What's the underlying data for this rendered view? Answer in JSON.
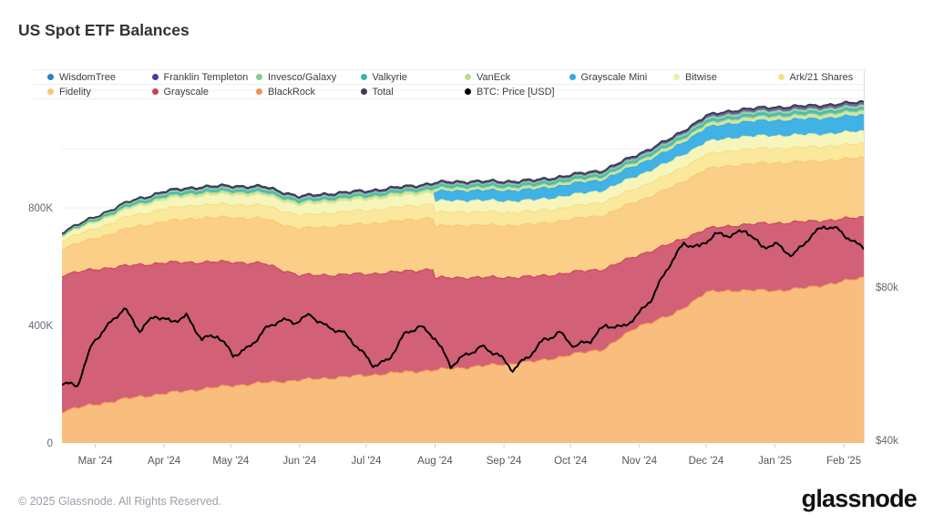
{
  "title": "US Spot ETF Balances",
  "footer": {
    "copyright": "© 2025 Glassnode. All Rights Reserved.",
    "brand": "glassnode"
  },
  "legend": {
    "rows": [
      [
        {
          "label": "WisdomTree",
          "slug": "wisdomtree",
          "color": "#2f7cc4"
        },
        {
          "label": "Franklin Templeton",
          "slug": "franklin-templeton",
          "color": "#4b3f94"
        },
        {
          "label": "Invesco/Galaxy",
          "slug": "invesco-galaxy",
          "color": "#85ca94"
        },
        {
          "label": "Valkyrie",
          "slug": "valkyrie",
          "color": "#3eb3ab"
        },
        {
          "label": "VanEck",
          "slug": "vaneck",
          "color": "#bedc84"
        },
        {
          "label": "Grayscale Mini",
          "slug": "grayscale-mini",
          "color": "#33abe2"
        },
        {
          "label": "Bitwise",
          "slug": "bitwise",
          "color": "#ecefa0"
        },
        {
          "label": "Ark/21 Shares",
          "slug": "ark-21-shares",
          "color": "#f7dd82"
        }
      ],
      [
        {
          "label": "Fidelity",
          "slug": "fidelity",
          "color": "#f9c572"
        },
        {
          "label": "Grayscale",
          "slug": "grayscale",
          "color": "#cb3f57"
        },
        {
          "label": "BlackRock",
          "slug": "blackrock",
          "color": "#f0924e"
        },
        {
          "label": "Total",
          "slug": "total",
          "color": "#3c3d55"
        },
        {
          "label": "BTC: Price [USD]",
          "slug": "btc-price-usd",
          "color": "#000000"
        }
      ]
    ]
  },
  "chart_data": {
    "type": "area",
    "stacked": true,
    "title": "US Spot ETF Balances",
    "x_range": [
      "Feb 15 2024",
      "Feb 10 2025"
    ],
    "x_unit": "days since 2024-02-15",
    "x_days": [
      0,
      15,
      30,
      46,
      61,
      76,
      91,
      107,
      122,
      137,
      152,
      167,
      168,
      183,
      199,
      214,
      229,
      244,
      260,
      275,
      290,
      305,
      321,
      336,
      352,
      361
    ],
    "x_axis": {
      "ticks": [
        {
          "label": "Mar '24",
          "day": 15
        },
        {
          "label": "Apr '24",
          "day": 46
        },
        {
          "label": "May '24",
          "day": 76
        },
        {
          "label": "Jun '24",
          "day": 107
        },
        {
          "label": "Jul '24",
          "day": 137
        },
        {
          "label": "Aug '24",
          "day": 168
        },
        {
          "label": "Sep '24",
          "day": 199
        },
        {
          "label": "Oct '24",
          "day": 229
        },
        {
          "label": "Nov '24",
          "day": 260
        },
        {
          "label": "Dec '24",
          "day": 290
        },
        {
          "label": "Jan '25",
          "day": 321
        },
        {
          "label": "Feb '25",
          "day": 352
        }
      ]
    },
    "y_left": {
      "title": "ETF balance [BTC]",
      "scale": "linear",
      "gridlines_kbtc": [
        200,
        400,
        600,
        800,
        1000,
        1200
      ],
      "labels": [
        {
          "text": "0",
          "value": 0
        },
        {
          "text": "400K",
          "value": 400000
        },
        {
          "text": "800K",
          "value": 800000
        }
      ]
    },
    "y_right": {
      "title": "BTC: Price [USD]",
      "scale": "log",
      "labels": [
        {
          "text": "$40k",
          "value": 40000
        },
        {
          "text": "$80k",
          "value": 80000
        }
      ]
    },
    "series": [
      {
        "name": "BlackRock",
        "slug": "blackrock",
        "color": "#f0924e",
        "fill": "#f9bd7e",
        "values_kbtc": [
          109,
          131,
          152,
          168,
          182,
          195,
          205,
          214,
          222,
          230,
          240,
          248,
          248,
          258,
          268,
          278,
          300,
          320,
          400,
          435,
          513,
          520,
          518,
          528,
          550,
          563
        ]
      },
      {
        "name": "Grayscale",
        "slug": "grayscale",
        "color": "#cb3f57",
        "fill": "#d26077",
        "values_kbtc": [
          463,
          460,
          451,
          445,
          433,
          421,
          405,
          356,
          350,
          345,
          342,
          344,
          313,
          305,
          295,
          288,
          280,
          272,
          240,
          245,
          215,
          222,
          230,
          225,
          212,
          205
        ]
      },
      {
        "name": "Fidelity",
        "slug": "fidelity",
        "color": "#f9c572",
        "fill": "#fbcf87",
        "values_kbtc": [
          90,
          105,
          127,
          140,
          150,
          151,
          153,
          158,
          165,
          170,
          173,
          175,
          175,
          178,
          176,
          178,
          180,
          183,
          185,
          190,
          203,
          205,
          205,
          204,
          203,
          203
        ]
      },
      {
        "name": "Ark/21 Shares",
        "slug": "ark-21-shares",
        "color": "#f7dd82",
        "fill": "#fae89c",
        "values_kbtc": [
          28,
          33,
          40,
          44,
          45,
          45,
          45,
          46,
          47,
          46,
          47,
          47,
          47,
          46,
          45,
          44,
          44,
          45,
          46,
          48,
          50,
          51,
          50,
          49,
          48,
          47
        ]
      },
      {
        "name": "Bitwise",
        "slug": "bitwise",
        "color": "#ecefa0",
        "fill": "#f6f6bc",
        "values_kbtc": [
          16,
          20,
          25,
          30,
          31,
          32,
          33,
          34,
          35,
          36,
          37,
          38,
          38,
          38,
          38,
          38,
          38,
          39,
          40,
          42,
          42,
          43,
          42,
          42,
          42,
          42
        ]
      },
      {
        "name": "Grayscale Mini",
        "slug": "grayscale-mini",
        "color": "#33abe2",
        "fill": "#41b2e5",
        "values_kbtc": [
          0,
          0,
          0,
          0,
          0,
          0,
          0,
          0,
          0,
          0,
          0,
          0,
          33,
          34,
          36,
          37,
          38,
          37,
          38,
          40,
          48,
          50,
          52,
          53,
          54,
          55
        ]
      },
      {
        "name": "VanEck",
        "slug": "vaneck",
        "color": "#bedc84",
        "fill": "#d0e5a0",
        "values_kbtc": [
          3,
          5,
          7,
          8,
          8.5,
          9,
          9,
          9,
          9,
          9,
          9.5,
          10,
          10,
          10,
          10,
          10,
          10,
          10,
          11,
          12,
          13,
          13.5,
          14,
          14,
          14,
          14
        ]
      },
      {
        "name": "Valkyrie",
        "slug": "valkyrie",
        "color": "#3eb3ab",
        "fill": "#56beb6",
        "values_kbtc": [
          3,
          6,
          7.5,
          8,
          8.3,
          8.5,
          8.5,
          8.5,
          8.5,
          8.5,
          8.5,
          8.5,
          8.5,
          8.5,
          8.5,
          8.5,
          8.5,
          8.7,
          9,
          9.5,
          10,
          10,
          10,
          10,
          10,
          10
        ]
      },
      {
        "name": "Invesco/Galaxy",
        "slug": "invesco-galaxy",
        "color": "#85ca94",
        "fill": "#9ad5a6",
        "values_kbtc": [
          4,
          5,
          5.5,
          6,
          6,
          6,
          5.8,
          5.6,
          5.4,
          5.2,
          5,
          5,
          5,
          5,
          5,
          5,
          5,
          5.5,
          6,
          7,
          8,
          8.5,
          9,
          9,
          9,
          9
        ]
      },
      {
        "name": "Franklin Templeton",
        "slug": "franklin-templeton",
        "color": "#4b3f94",
        "fill": "#7063aa",
        "values_kbtc": [
          2,
          4,
          5,
          6,
          6.3,
          6.5,
          6.5,
          6.5,
          6.8,
          7,
          7,
          7,
          7,
          7,
          7,
          7,
          7,
          7.5,
          8,
          9,
          10,
          10.5,
          11,
          11,
          11,
          11
        ]
      },
      {
        "name": "WisdomTree",
        "slug": "wisdomtree",
        "color": "#2f7cc4",
        "fill": "#4287c9",
        "values_kbtc": [
          0.2,
          0.4,
          0.6,
          0.8,
          0.9,
          0.9,
          0.9,
          0.9,
          0.9,
          0.9,
          0.9,
          0.9,
          0.9,
          0.9,
          0.9,
          0.9,
          0.9,
          1,
          1,
          1.1,
          1.2,
          1.2,
          1.3,
          1.3,
          1.3,
          1.3
        ]
      }
    ],
    "total": {
      "name": "Total",
      "color": "#3c3d55"
    },
    "btc_price": {
      "name": "BTC: Price [USD]",
      "color": "#000000",
      "days": [
        0,
        7,
        14,
        21,
        28,
        35,
        42,
        49,
        56,
        63,
        70,
        77,
        84,
        91,
        98,
        105,
        112,
        119,
        126,
        133,
        140,
        147,
        154,
        161,
        168,
        175,
        182,
        189,
        196,
        203,
        210,
        217,
        224,
        231,
        238,
        245,
        252,
        259,
        266,
        273,
        280,
        287,
        294,
        301,
        308,
        315,
        322,
        329,
        336,
        343,
        350,
        357,
        361
      ],
      "values_usd": [
        52000,
        51500,
        62000,
        67000,
        73000,
        66000,
        70000,
        68000,
        70500,
        63500,
        64000,
        58500,
        61000,
        66000,
        68500,
        68000,
        71000,
        67000,
        65000,
        61000,
        56500,
        57500,
        64000,
        67000,
        64000,
        56000,
        58500,
        61000,
        59500,
        55000,
        58000,
        63000,
        65500,
        61000,
        62500,
        67500,
        67000,
        70000,
        76000,
        88000,
        98000,
        95500,
        101000,
        101500,
        104000,
        95500,
        96500,
        92500,
        100000,
        105000,
        103000,
        98000,
        96500
      ]
    }
  }
}
